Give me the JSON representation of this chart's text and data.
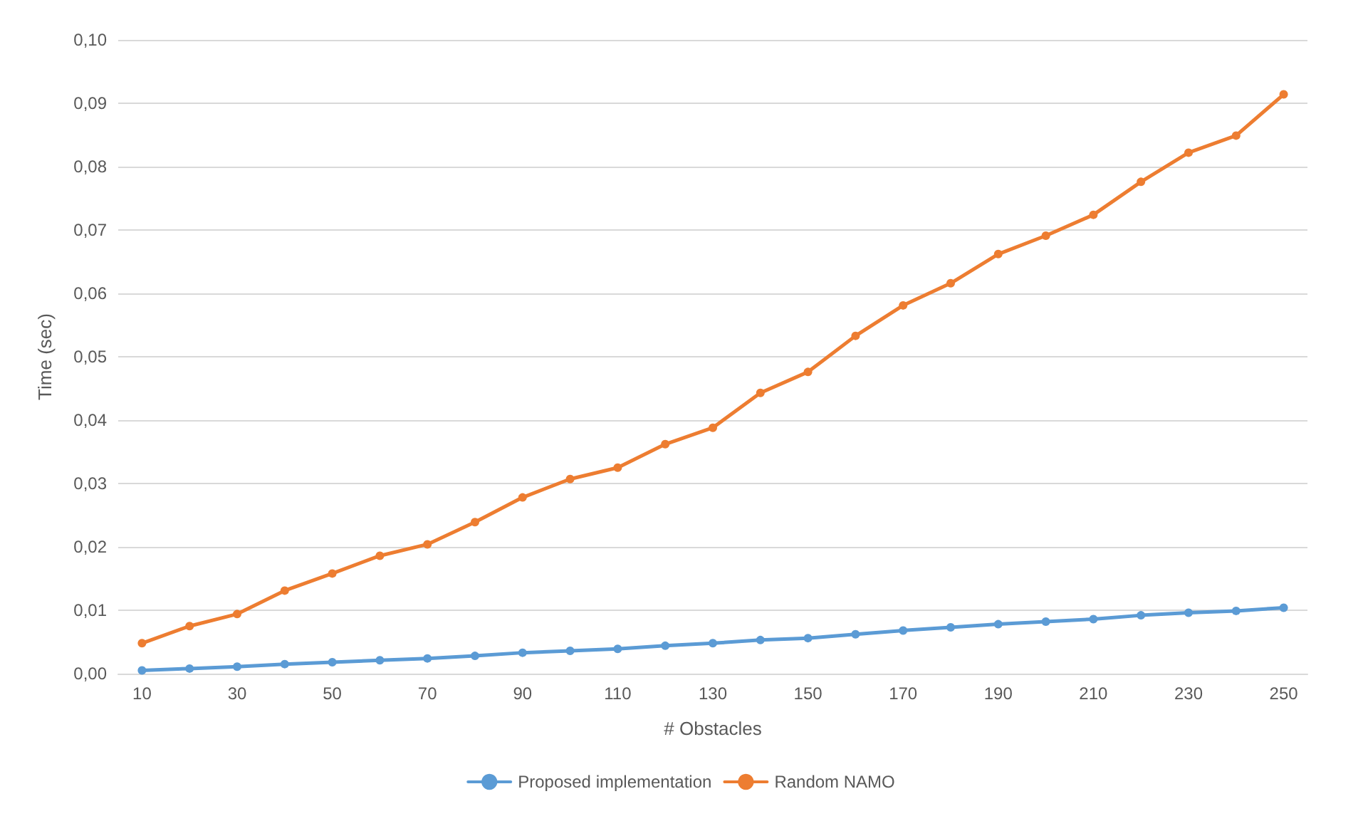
{
  "chart_data": {
    "type": "line",
    "xlabel": "# Obstacles",
    "ylabel": "Time (sec)",
    "categories": [
      "10",
      null,
      "30",
      null,
      "50",
      null,
      "70",
      null,
      "90",
      null,
      "110",
      null,
      "130",
      null,
      "150",
      null,
      "170",
      null,
      "190",
      null,
      "210",
      null,
      "230",
      null,
      "250"
    ],
    "series": [
      {
        "name": "Proposed implementation",
        "color": "#5b9bd5",
        "values": [
          0.0005,
          0.0008,
          0.0011,
          0.0015,
          0.0018,
          0.0021,
          0.0024,
          0.0028,
          0.0033,
          0.0036,
          0.0039,
          0.0044,
          0.0048,
          0.0053,
          0.0056,
          0.0062,
          0.0068,
          0.0073,
          0.0078,
          0.0082,
          0.0086,
          0.0092,
          0.0096,
          0.0099,
          0.0104
        ]
      },
      {
        "name": "Random NAMO",
        "color": "#ed7d31",
        "values": [
          0.0048,
          0.0075,
          0.0094,
          0.0131,
          0.0158,
          0.0186,
          0.0204,
          0.0239,
          0.0278,
          0.0307,
          0.0325,
          0.0362,
          0.0388,
          0.0443,
          0.0476,
          0.0533,
          0.0581,
          0.0616,
          0.0662,
          0.0691,
          0.0724,
          0.0776,
          0.0822,
          0.0849,
          0.0914
        ]
      }
    ],
    "ylim": [
      0,
      0.1
    ],
    "yticks": [
      {
        "value": 0,
        "label": "0,00"
      },
      {
        "value": 0.01,
        "label": "0,01"
      },
      {
        "value": 0.02,
        "label": "0,02"
      },
      {
        "value": 0.03,
        "label": "0,03"
      },
      {
        "value": 0.04,
        "label": "0,04"
      },
      {
        "value": 0.05,
        "label": "0,05"
      },
      {
        "value": 0.06,
        "label": "0,06"
      },
      {
        "value": 0.07,
        "label": "0,07"
      },
      {
        "value": 0.08,
        "label": "0,08"
      },
      {
        "value": 0.09,
        "label": "0,09"
      },
      {
        "value": 0.1,
        "label": "0,10"
      }
    ],
    "grid": "y",
    "legend": "bottom",
    "marker": "circle",
    "line_style": "solid"
  }
}
